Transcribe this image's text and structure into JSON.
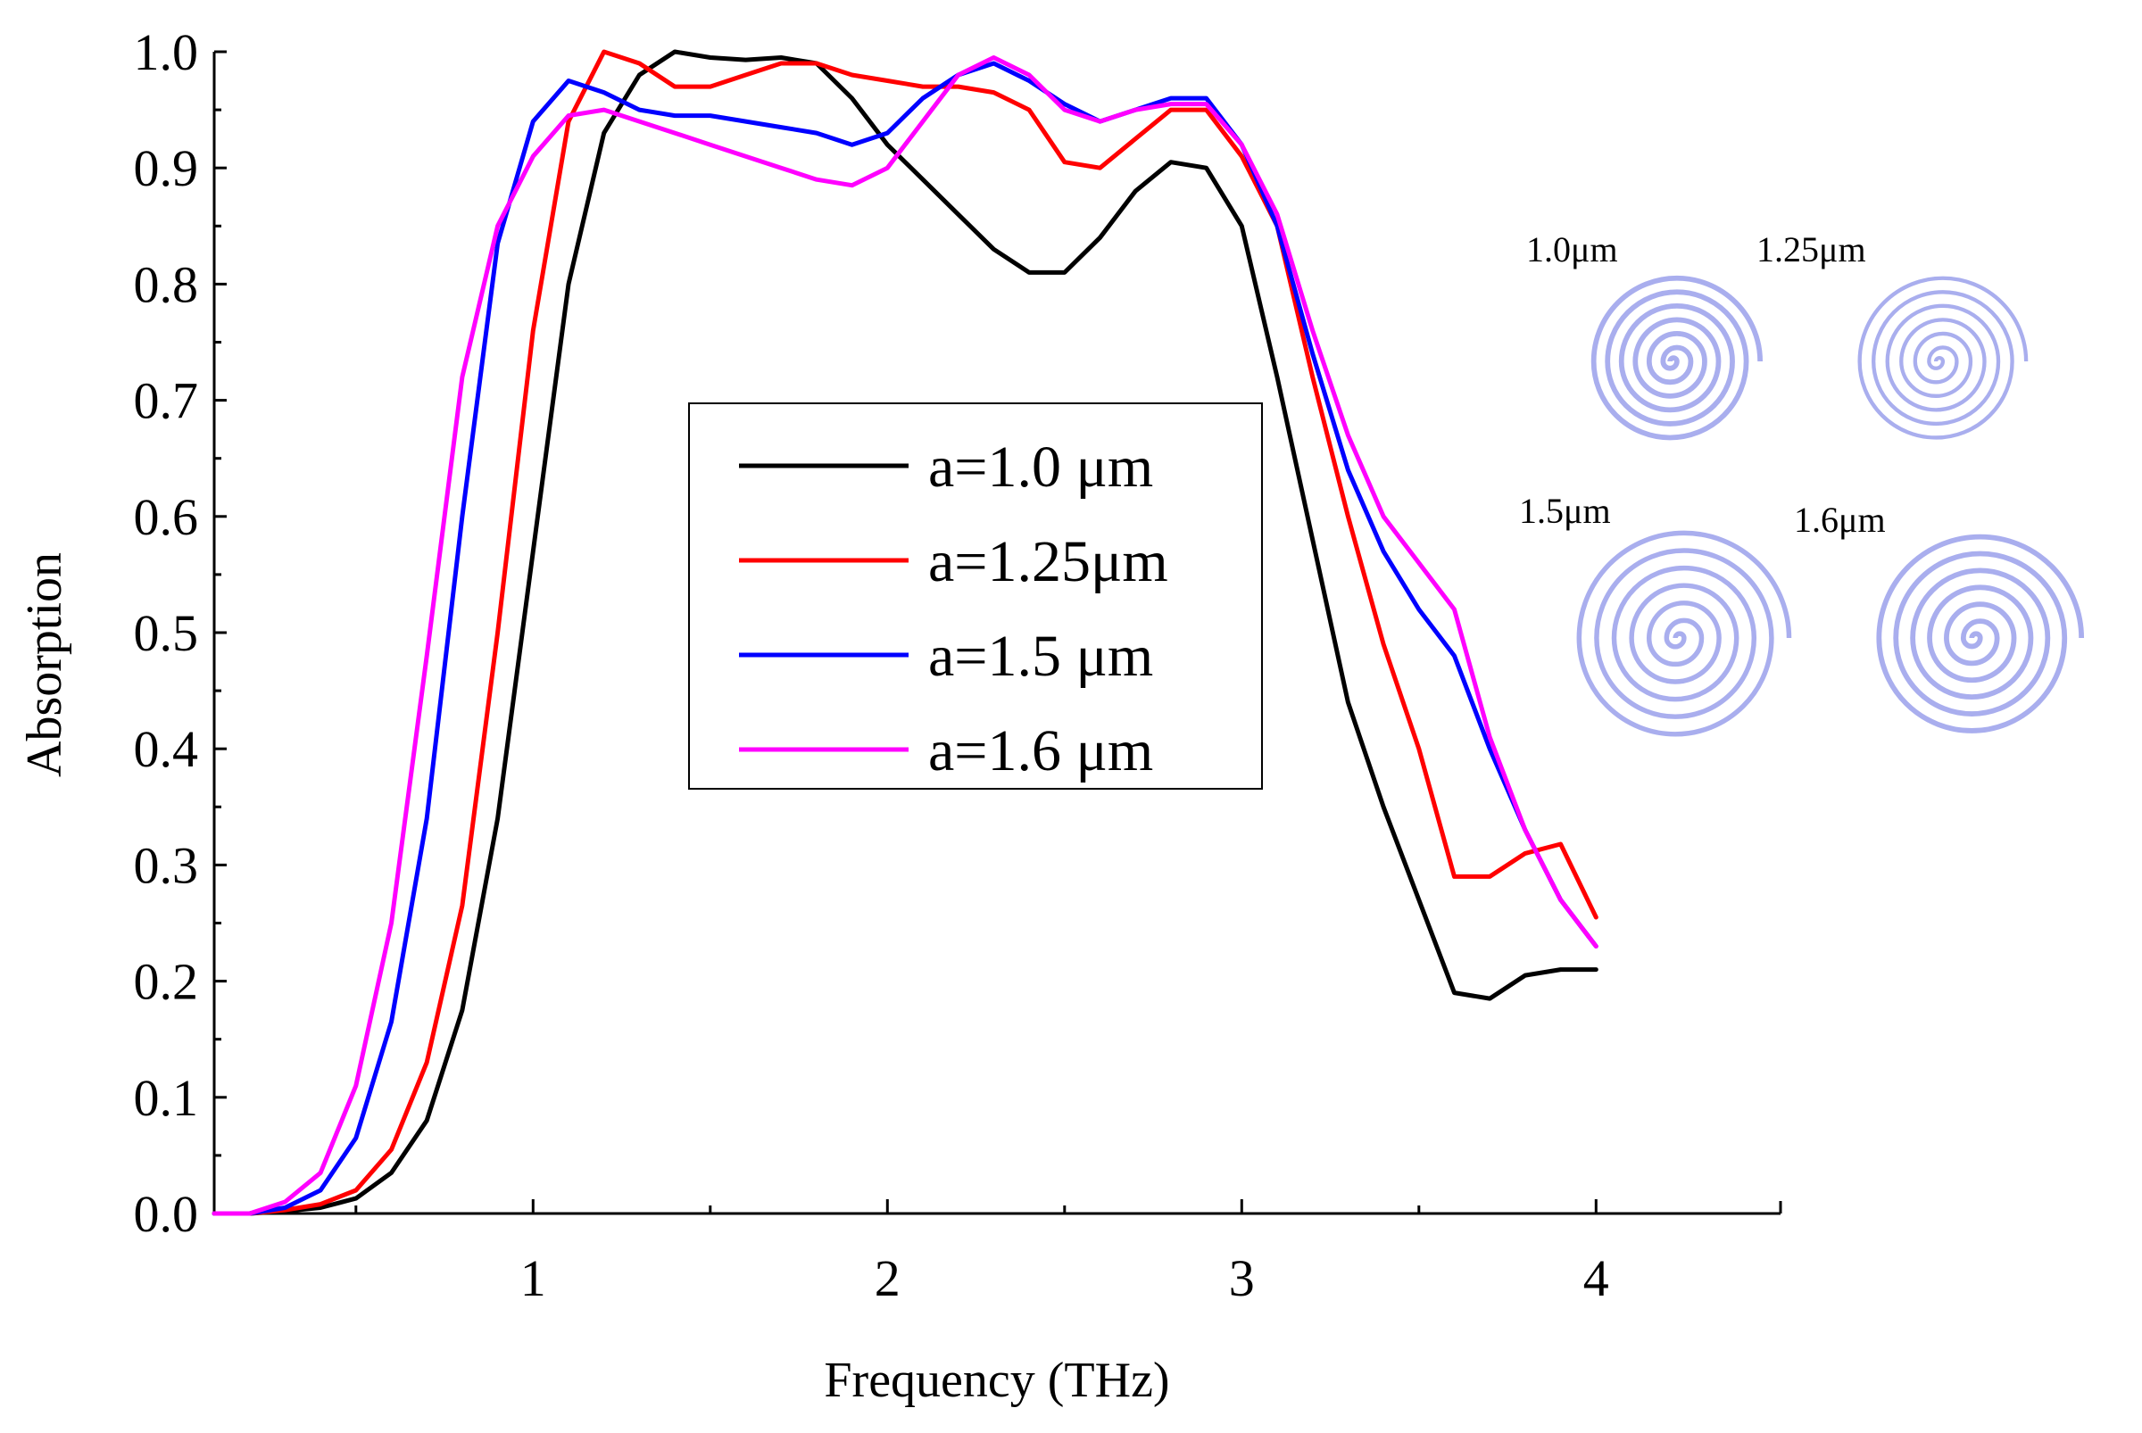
{
  "chart_data": {
    "type": "line",
    "title": "",
    "xlabel": "Frequency (THz)",
    "ylabel": "Absorption",
    "xlim": [
      0.1,
      4.5
    ],
    "ylim": [
      0.0,
      1.0
    ],
    "xticks": [
      1,
      2,
      3,
      4
    ],
    "xtick_labels": [
      "1",
      "2",
      "3",
      "4"
    ],
    "yticks": [
      0.0,
      0.1,
      0.2,
      0.3,
      0.4,
      0.5,
      0.6,
      0.7,
      0.8,
      0.9,
      1.0
    ],
    "ytick_labels": [
      "0.0",
      "0.1",
      "0.2",
      "0.3",
      "0.4",
      "0.5",
      "0.6",
      "0.7",
      "0.8",
      "0.9",
      "1.0"
    ],
    "grid": false,
    "legend_position": "center",
    "series": [
      {
        "name": "a=1.0 μm",
        "color": "#000000",
        "x": [
          0.1,
          0.2,
          0.3,
          0.4,
          0.5,
          0.6,
          0.7,
          0.8,
          0.9,
          1.0,
          1.1,
          1.2,
          1.3,
          1.4,
          1.5,
          1.6,
          1.7,
          1.8,
          1.9,
          2.0,
          2.1,
          2.2,
          2.3,
          2.4,
          2.5,
          2.6,
          2.7,
          2.8,
          2.9,
          3.0,
          3.1,
          3.2,
          3.3,
          3.4,
          3.5,
          3.6,
          3.7,
          3.8,
          3.9,
          4.0
        ],
        "y": [
          0.0,
          0.0,
          0.002,
          0.005,
          0.013,
          0.035,
          0.08,
          0.175,
          0.34,
          0.57,
          0.8,
          0.93,
          0.98,
          1.0,
          0.995,
          0.993,
          0.995,
          0.99,
          0.96,
          0.92,
          0.89,
          0.86,
          0.83,
          0.81,
          0.81,
          0.84,
          0.88,
          0.905,
          0.9,
          0.85,
          0.72,
          0.58,
          0.44,
          0.35,
          0.27,
          0.19,
          0.185,
          0.205,
          0.21,
          0.21
        ]
      },
      {
        "name": "a=1.25μm",
        "color": "#ff0000",
        "x": [
          0.1,
          0.2,
          0.3,
          0.4,
          0.5,
          0.6,
          0.7,
          0.8,
          0.9,
          1.0,
          1.1,
          1.2,
          1.3,
          1.4,
          1.5,
          1.6,
          1.7,
          1.8,
          1.9,
          2.0,
          2.1,
          2.2,
          2.3,
          2.4,
          2.5,
          2.6,
          2.7,
          2.8,
          2.9,
          3.0,
          3.1,
          3.2,
          3.3,
          3.4,
          3.5,
          3.6,
          3.7,
          3.8,
          3.9,
          4.0
        ],
        "y": [
          0.0,
          0.0,
          0.003,
          0.008,
          0.02,
          0.055,
          0.13,
          0.265,
          0.5,
          0.76,
          0.94,
          1.0,
          0.99,
          0.97,
          0.97,
          0.98,
          0.99,
          0.99,
          0.98,
          0.975,
          0.97,
          0.97,
          0.965,
          0.95,
          0.905,
          0.9,
          0.925,
          0.95,
          0.95,
          0.91,
          0.85,
          0.72,
          0.6,
          0.49,
          0.4,
          0.29,
          0.29,
          0.31,
          0.318,
          0.255
        ]
      },
      {
        "name": "a=1.5 μm",
        "color": "#0000ff",
        "x": [
          0.1,
          0.2,
          0.3,
          0.4,
          0.5,
          0.6,
          0.7,
          0.8,
          0.9,
          1.0,
          1.1,
          1.2,
          1.3,
          1.4,
          1.5,
          1.6,
          1.7,
          1.8,
          1.9,
          2.0,
          2.1,
          2.2,
          2.3,
          2.4,
          2.5,
          2.6,
          2.7,
          2.8,
          2.9,
          3.0,
          3.1,
          3.2,
          3.3,
          3.4,
          3.5,
          3.6,
          3.7,
          3.8,
          3.9,
          4.0
        ],
        "y": [
          0.0,
          0.0,
          0.005,
          0.02,
          0.065,
          0.165,
          0.34,
          0.6,
          0.835,
          0.94,
          0.975,
          0.965,
          0.95,
          0.945,
          0.945,
          0.94,
          0.935,
          0.93,
          0.92,
          0.93,
          0.96,
          0.98,
          0.99,
          0.975,
          0.955,
          0.94,
          0.95,
          0.96,
          0.96,
          0.92,
          0.85,
          0.74,
          0.64,
          0.57,
          0.52,
          0.48,
          0.4,
          0.33,
          0.27,
          0.23
        ]
      },
      {
        "name": "a=1.6 μm",
        "color": "#ff00ff",
        "x": [
          0.1,
          0.2,
          0.3,
          0.4,
          0.5,
          0.6,
          0.7,
          0.8,
          0.9,
          1.0,
          1.1,
          1.2,
          1.3,
          1.4,
          1.5,
          1.6,
          1.7,
          1.8,
          1.9,
          2.0,
          2.1,
          2.2,
          2.3,
          2.4,
          2.5,
          2.6,
          2.7,
          2.8,
          2.9,
          3.0,
          3.1,
          3.2,
          3.3,
          3.4,
          3.5,
          3.6,
          3.7,
          3.8,
          3.9,
          4.0
        ],
        "y": [
          0.0,
          0.0,
          0.01,
          0.035,
          0.11,
          0.25,
          0.48,
          0.72,
          0.85,
          0.91,
          0.945,
          0.95,
          0.94,
          0.93,
          0.92,
          0.91,
          0.9,
          0.89,
          0.885,
          0.9,
          0.94,
          0.98,
          0.995,
          0.98,
          0.95,
          0.94,
          0.95,
          0.955,
          0.955,
          0.92,
          0.86,
          0.76,
          0.67,
          0.6,
          0.56,
          0.52,
          0.41,
          0.33,
          0.27,
          0.23
        ]
      }
    ]
  },
  "inset": {
    "labels": [
      "1.0μm",
      "1.25μm",
      "1.5μm",
      "1.6μm"
    ],
    "spiral_color": "#a9aeee"
  }
}
